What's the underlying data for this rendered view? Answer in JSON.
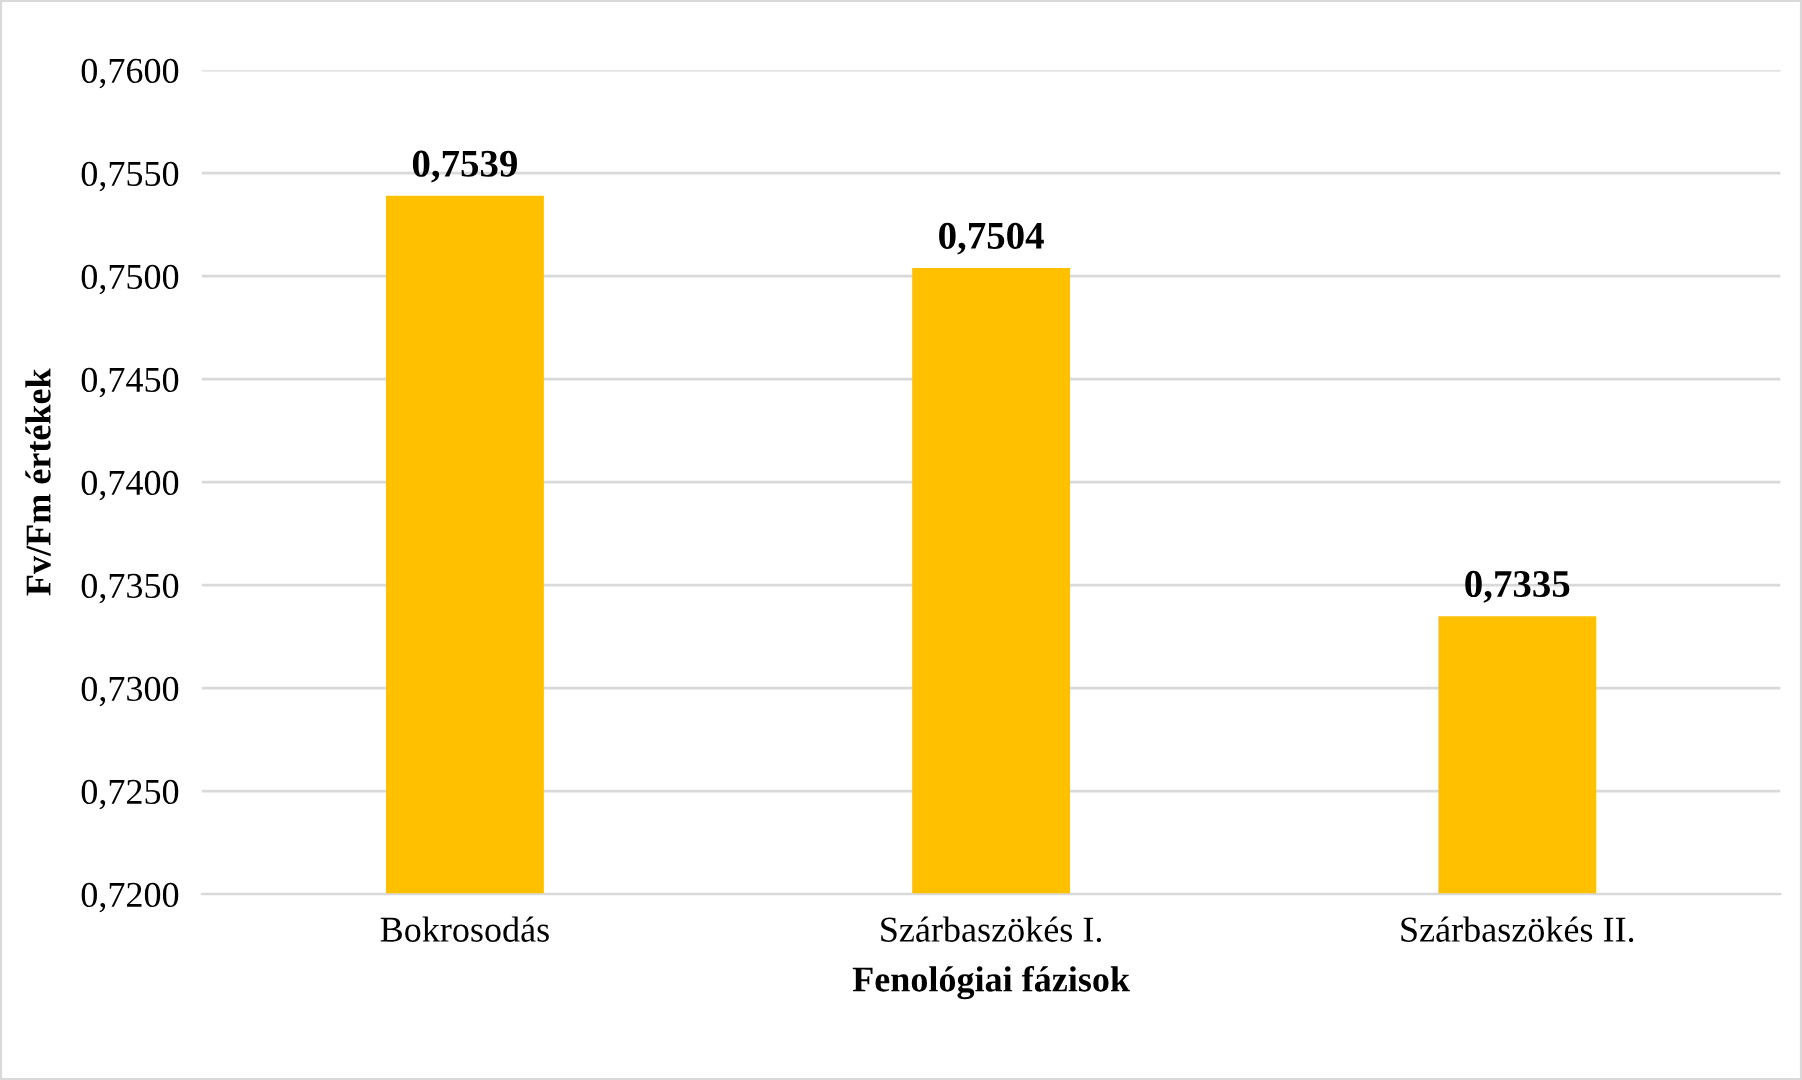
{
  "chart_data": {
    "type": "bar",
    "categories": [
      "Bokrosodás",
      "Szárbaszökés I.",
      "Szárbaszökés II."
    ],
    "values": [
      0.7539,
      0.7504,
      0.7335
    ],
    "value_labels": [
      "0,7539",
      "0,7504",
      "0,7335"
    ],
    "color": "#ffc000",
    "xlabel": "Fenológiai fázisok",
    "ylabel": "Fv/Fm értékek",
    "ylim": [
      0.72,
      0.76
    ],
    "yticks": [
      {
        "value": 0.72,
        "label": "0,7200"
      },
      {
        "value": 0.725,
        "label": "0,7250"
      },
      {
        "value": 0.73,
        "label": "0,7300"
      },
      {
        "value": 0.735,
        "label": "0,7350"
      },
      {
        "value": 0.74,
        "label": "0,7400"
      },
      {
        "value": 0.745,
        "label": "0,7450"
      },
      {
        "value": 0.75,
        "label": "0,7500"
      },
      {
        "value": 0.755,
        "label": "0,7550"
      },
      {
        "value": 0.76,
        "label": "0,7600"
      }
    ],
    "grid": "y",
    "legend": false
  }
}
